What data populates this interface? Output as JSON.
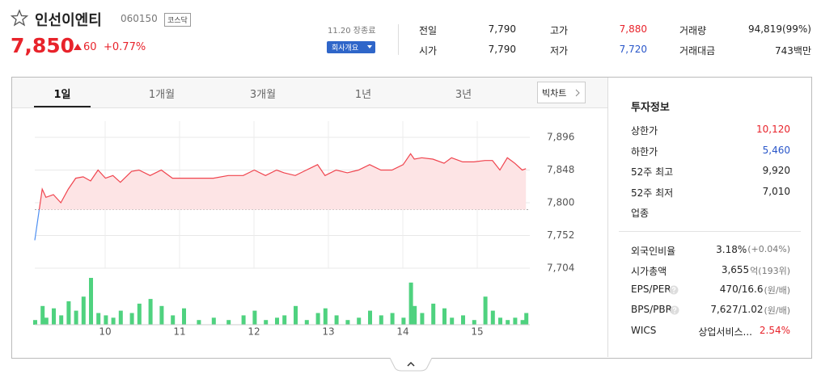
{
  "header": {
    "name": "인선이엔티",
    "code": "060150",
    "market": "코스닥",
    "price": "7,850",
    "change": "60",
    "change_pct": "+0.77%",
    "status": "11.20 장종료",
    "company_button": "회사개요"
  },
  "summary": [
    {
      "label": "전일",
      "value": "7,790"
    },
    {
      "label": "시가",
      "value": "7,790"
    },
    {
      "label": "고가",
      "value": "7,880"
    },
    {
      "label": "저가",
      "value": "7,720"
    },
    {
      "label": "거래량",
      "value": "94,819(99%)"
    },
    {
      "label": "거래대금",
      "value": "743백만"
    }
  ],
  "tabs": [
    "1일",
    "1개월",
    "3개월",
    "1년",
    "3년"
  ],
  "big_chart_button": "빅차트",
  "chart_data": {
    "type": "line",
    "x": [
      9.0,
      9.1,
      9.15,
      9.25,
      9.35,
      9.45,
      9.55,
      9.65,
      9.75,
      9.85,
      9.95,
      10.05,
      10.15,
      10.3,
      10.4,
      10.55,
      10.7,
      10.85,
      11.0,
      11.2,
      11.4,
      11.6,
      11.8,
      11.95,
      12.1,
      12.25,
      12.35,
      12.5,
      12.65,
      12.8,
      12.9,
      13.05,
      13.2,
      13.35,
      13.5,
      13.65,
      13.8,
      13.95,
      14.05,
      14.1,
      14.2,
      14.35,
      14.5,
      14.6,
      14.75,
      14.9,
      15.05,
      15.15,
      15.25,
      15.35,
      15.45,
      15.55,
      15.6
    ],
    "values": [
      7745,
      7820,
      7808,
      7812,
      7800,
      7820,
      7836,
      7838,
      7832,
      7848,
      7836,
      7840,
      7830,
      7846,
      7848,
      7840,
      7848,
      7836,
      7836,
      7836,
      7836,
      7840,
      7840,
      7848,
      7840,
      7848,
      7844,
      7840,
      7848,
      7856,
      7840,
      7848,
      7844,
      7848,
      7856,
      7848,
      7848,
      7856,
      7872,
      7864,
      7866,
      7864,
      7858,
      7866,
      7860,
      7860,
      7862,
      7862,
      7848,
      7866,
      7858,
      7848,
      7850
    ],
    "volume": [
      10,
      40,
      15,
      35,
      20,
      50,
      30,
      60,
      100,
      25,
      20,
      15,
      30,
      25,
      45,
      55,
      40,
      20,
      35,
      10,
      15,
      10,
      20,
      30,
      10,
      15,
      20,
      40,
      10,
      25,
      35,
      20,
      10,
      15,
      30,
      20,
      25,
      15,
      90,
      40,
      25,
      45,
      35,
      15,
      20,
      10,
      60,
      30,
      15,
      10,
      15,
      10,
      25
    ],
    "reference_line": 7790,
    "xlim": [
      9,
      15.6
    ],
    "xticks": [
      10,
      11,
      12,
      13,
      14,
      15
    ],
    "ylim": [
      7704,
      7896
    ],
    "yticks": [
      {
        "value": 7896,
        "label": "7,896"
      },
      {
        "value": 7848,
        "label": "7,848"
      },
      {
        "value": 7800,
        "label": "7,800"
      },
      {
        "value": 7752,
        "label": "7,752"
      },
      {
        "value": 7704,
        "label": "7,704"
      }
    ],
    "grid": true,
    "color": "#f0444e",
    "down_color": "#4d8ff2",
    "fill_color": "#fde4e5",
    "volume_color": "#4fd27f"
  },
  "invest_info": {
    "title": "투자정보",
    "rows": [
      {
        "label": "상한가",
        "value": "10,120"
      },
      {
        "label": "하한가",
        "value": "5,460"
      },
      {
        "label": "52주 최고",
        "value": "9,920"
      },
      {
        "label": "52주 최저",
        "value": "7,010"
      },
      {
        "label": "업종"
      }
    ],
    "rows2": [
      {
        "label": "외국인비율",
        "value": "3.18%",
        "note": "(+0.04%)"
      },
      {
        "label": "시가총액",
        "value": "3,655",
        "note": "억(193위)"
      },
      {
        "label": "EPS/PER",
        "value": "470/16.6",
        "note": "(원/배)"
      },
      {
        "label": "BPS/PBR",
        "value": "7,627/1.02",
        "note": "(원/배)"
      },
      {
        "label": "WICS",
        "value": "상업서비스...",
        "note": "2.54%"
      }
    ]
  }
}
